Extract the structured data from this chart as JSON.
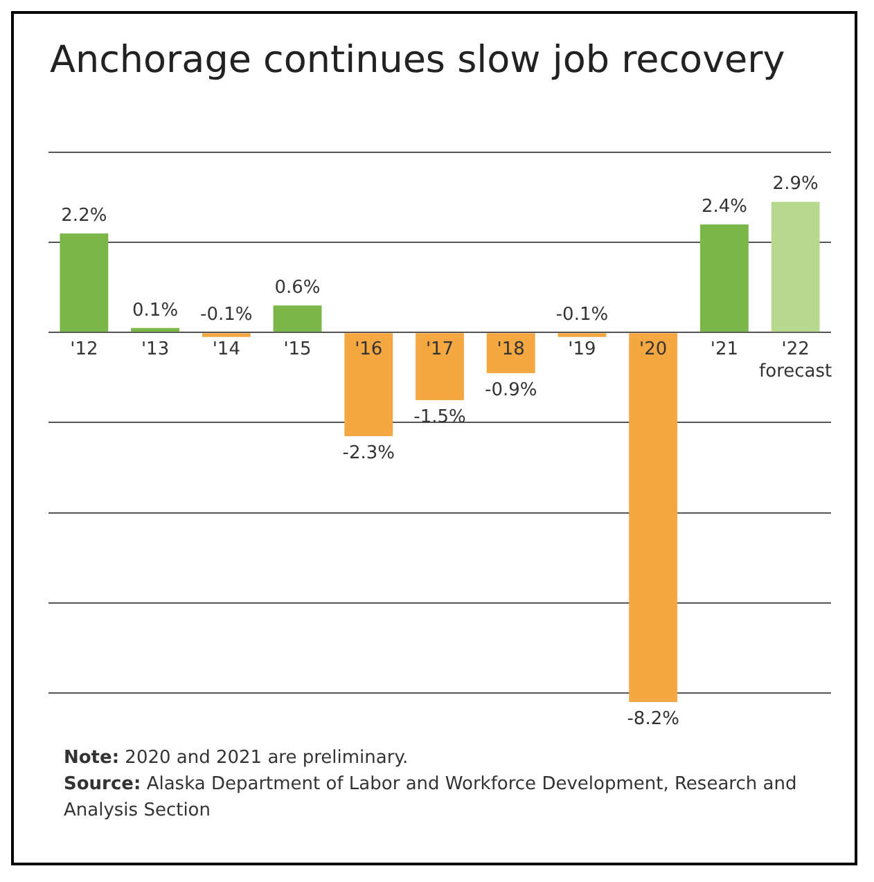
{
  "chart_data": {
    "type": "bar",
    "title": "Anchorage continues slow job recovery",
    "categories": [
      "'12",
      "'13",
      "'14",
      "'15",
      "'16",
      "'17",
      "'18",
      "'19",
      "'20",
      "'21",
      "'22 forecast"
    ],
    "values": [
      2.2,
      0.1,
      -0.1,
      0.6,
      -2.3,
      -1.5,
      -0.9,
      -0.1,
      -8.2,
      2.4,
      2.9
    ],
    "colors": [
      "#7ab648",
      "#7ab648",
      "#f5a742",
      "#7ab648",
      "#f5a742",
      "#f5a742",
      "#f5a742",
      "#f5a742",
      "#f5a742",
      "#7ab648",
      "#b7d98f"
    ],
    "value_labels": [
      "2.2%",
      "0.1%",
      "-0.1%",
      "0.6%",
      "-2.3%",
      "-1.5%",
      "-0.9%",
      "-0.1%",
      "-8.2%",
      "2.4%",
      "2.9%"
    ],
    "yticks": [
      {
        "value": -8,
        "label": null
      },
      {
        "value": -6,
        "label": null
      },
      {
        "value": -4,
        "label": null
      },
      {
        "value": -2,
        "label": null
      },
      {
        "value": 0,
        "label": null
      },
      {
        "value": 2,
        "label": null
      },
      {
        "value": 4,
        "label": null
      }
    ],
    "grid": "y",
    "tick_labels": "x",
    "legend": false,
    "annotations": [
      "Note: 2020 and 2021 are preliminary.",
      "Source: Alaska Department of Labor and Workforce Development, Research and Analysis Section"
    ]
  }
}
